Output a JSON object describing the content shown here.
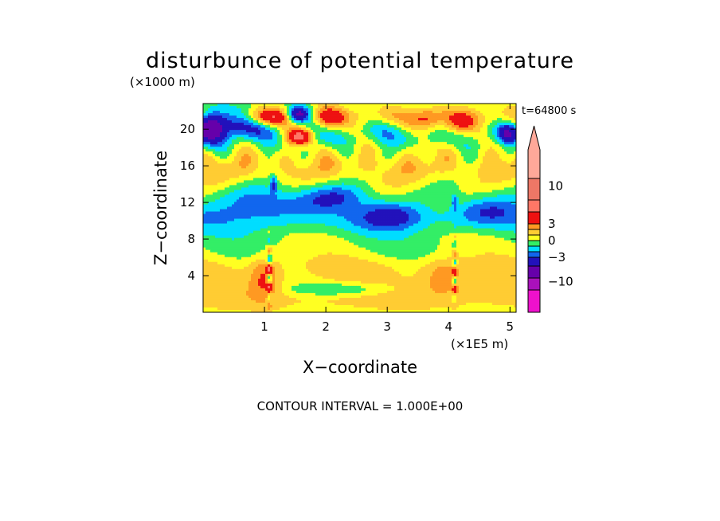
{
  "chart_data": {
    "type": "heatmap",
    "title": "disturbunce of potential temperature",
    "xlabel": "X−coordinate",
    "ylabel": "Z−coordinate",
    "x_unit": "(×1E5 m)",
    "y_unit": "(×1000 m)",
    "time_label": "t=64800 s",
    "footnote": "CONTOUR INTERVAL = 1.000E+00",
    "xlim": [
      0,
      5.1
    ],
    "ylim": [
      0,
      22.8
    ],
    "x_ticks": [
      1,
      2,
      3,
      4,
      5
    ],
    "y_ticks": [
      4,
      8,
      12,
      16,
      20
    ],
    "colorbar": {
      "labels": [
        {
          "value": 10,
          "text": "10"
        },
        {
          "value": 3,
          "text": "3"
        },
        {
          "value": 0,
          "text": "0"
        },
        {
          "value": -3,
          "text": "−3"
        },
        {
          "value": -10,
          "text": "−10"
        }
      ],
      "levels": [
        {
          "lo": -99,
          "hi": -11,
          "color": "#ee11cc"
        },
        {
          "lo": -11,
          "hi": -8,
          "color": "#aa11bb"
        },
        {
          "lo": -8,
          "hi": -5,
          "color": "#6600aa"
        },
        {
          "lo": -5,
          "hi": -3,
          "color": "#2211bb"
        },
        {
          "lo": -3,
          "hi": -2,
          "color": "#1166ee"
        },
        {
          "lo": -2,
          "hi": -1,
          "color": "#00ddff"
        },
        {
          "lo": -1,
          "hi": 0,
          "color": "#33ee66"
        },
        {
          "lo": 0,
          "hi": 1,
          "color": "#ffff22"
        },
        {
          "lo": 1,
          "hi": 2,
          "color": "#ffcc33"
        },
        {
          "lo": 2,
          "hi": 3,
          "color": "#ff9922"
        },
        {
          "lo": 3,
          "hi": 5,
          "color": "#ee1111"
        },
        {
          "lo": 5,
          "hi": 8,
          "color": "#ff7766"
        },
        {
          "lo": 8,
          "hi": 11,
          "color": "#ee7766"
        },
        {
          "lo": 11,
          "hi": 99,
          "color": "#ffa899"
        }
      ]
    },
    "grid": false,
    "legend_position": "right"
  }
}
